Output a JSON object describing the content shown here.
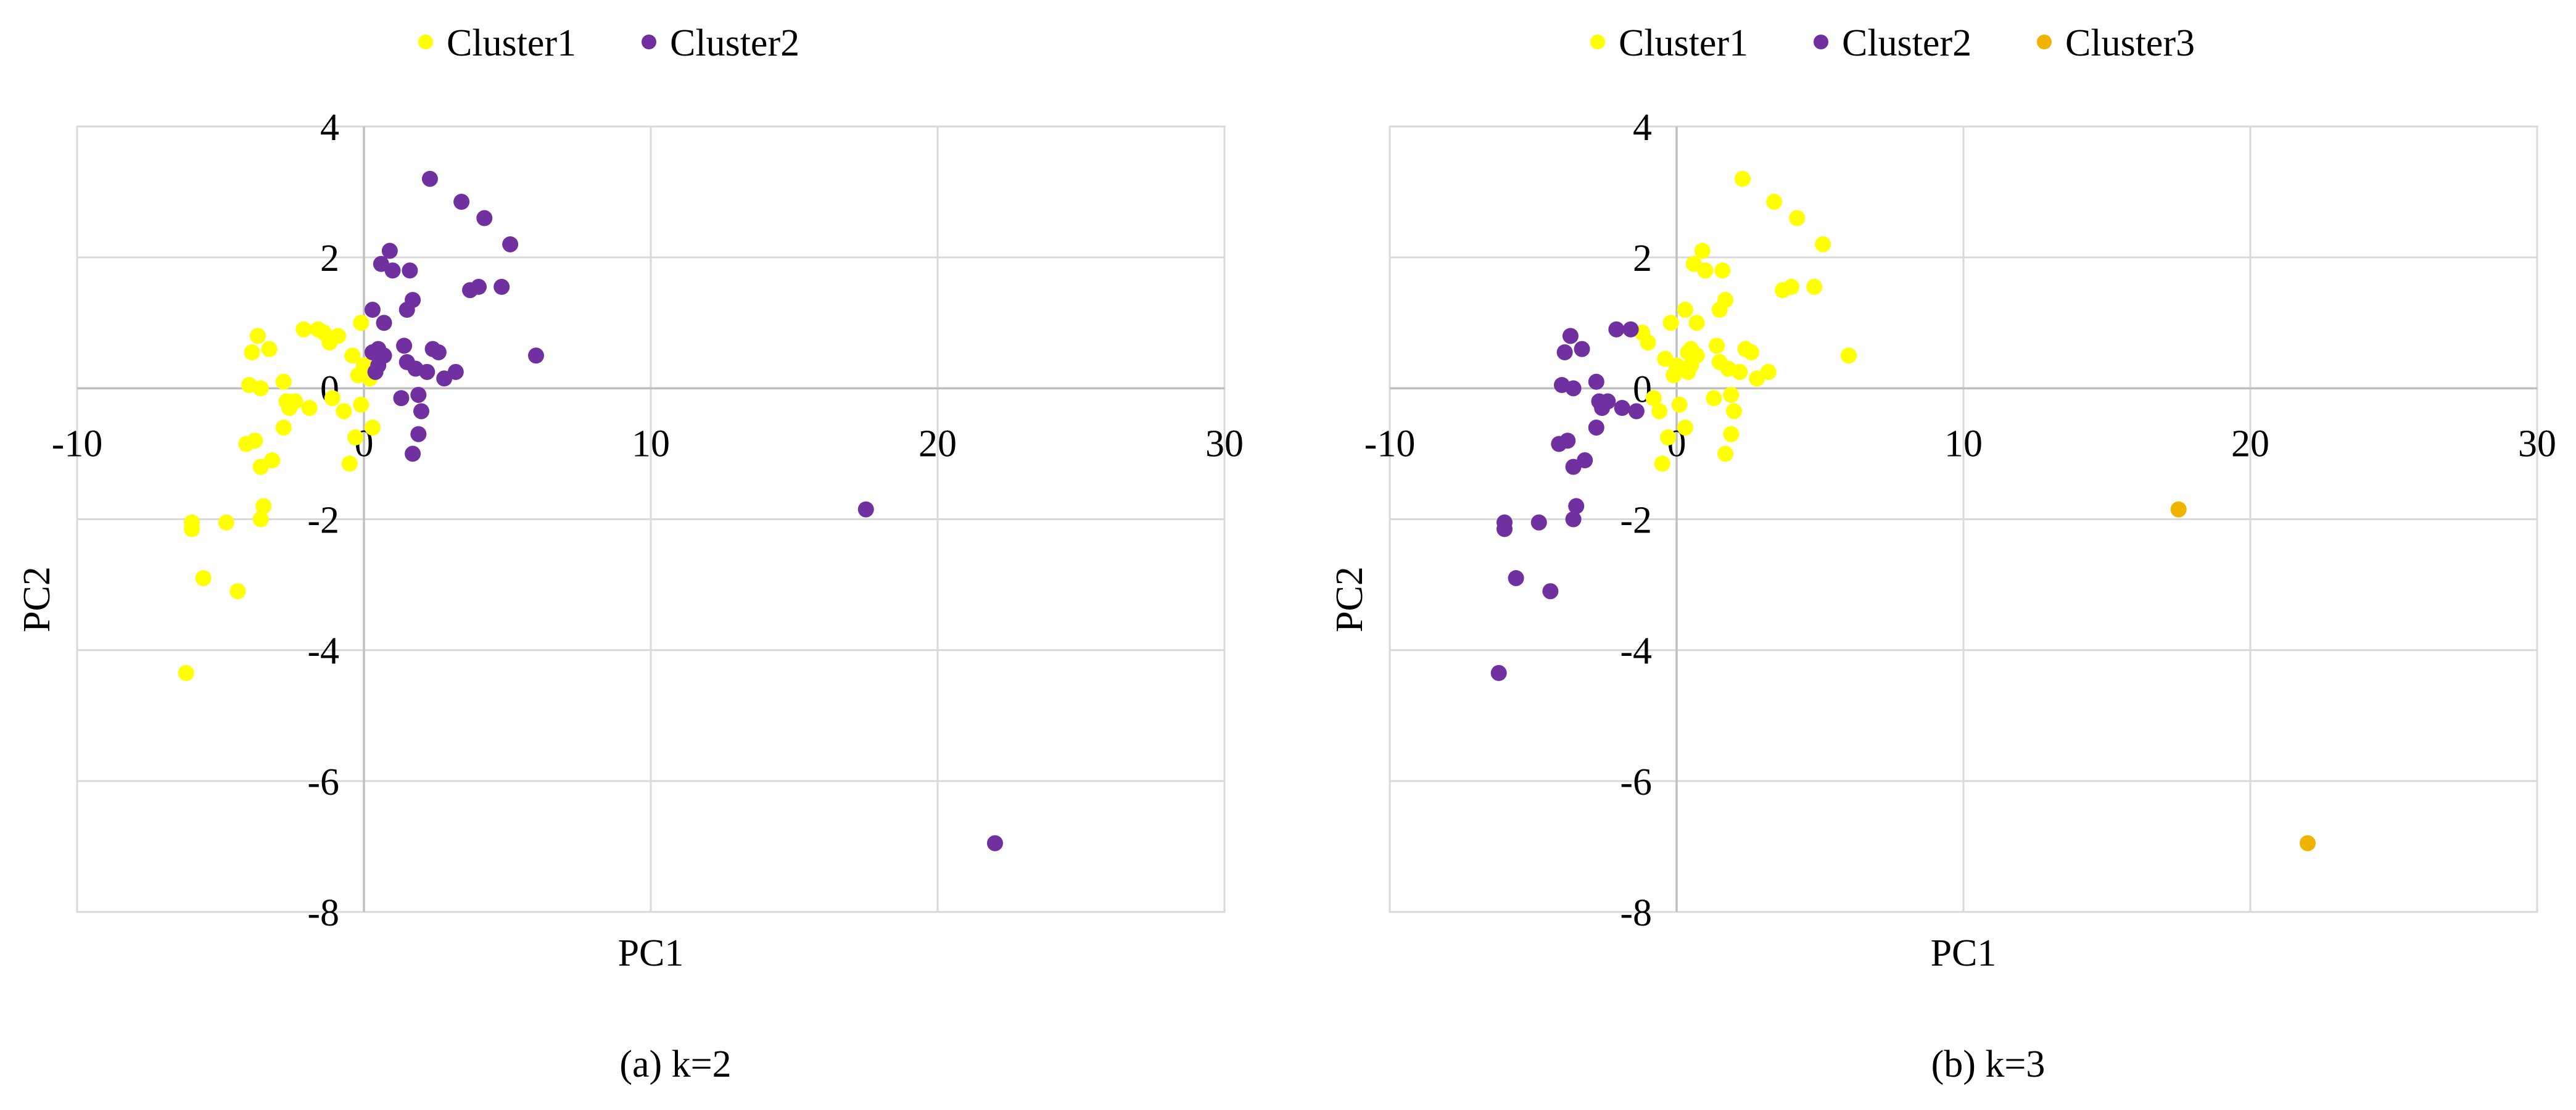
{
  "chart_data": [
    {
      "type": "scatter",
      "caption": "(a)  k=2",
      "xlabel": "PC1",
      "ylabel": "PC2",
      "xlim": [
        -10,
        30
      ],
      "ylim": [
        -8,
        4
      ],
      "xticks": [
        -10,
        0,
        10,
        20,
        30
      ],
      "yticks": [
        -8,
        -6,
        -4,
        -2,
        0,
        2,
        4
      ],
      "grid": true,
      "legend": "top",
      "series": [
        {
          "name": "Cluster1",
          "color": "#FFFF00",
          "points": [
            [
              -6.2,
              -4.35
            ],
            [
              -6.0,
              -2.05
            ],
            [
              -6.0,
              -2.15
            ],
            [
              -5.6,
              -2.9
            ],
            [
              -4.8,
              -2.05
            ],
            [
              -4.4,
              -3.1
            ],
            [
              -4.1,
              -0.85
            ],
            [
              -3.8,
              -0.8
            ],
            [
              -3.6,
              -1.2
            ],
            [
              -3.5,
              -1.8
            ],
            [
              -3.6,
              -2.0
            ],
            [
              -3.7,
              0.8
            ],
            [
              -3.9,
              0.55
            ],
            [
              -4.0,
              0.05
            ],
            [
              -3.6,
              0.0
            ],
            [
              -3.3,
              0.6
            ],
            [
              -3.2,
              -1.1
            ],
            [
              -2.8,
              0.1
            ],
            [
              -2.7,
              -0.2
            ],
            [
              -2.6,
              -0.3
            ],
            [
              -2.8,
              -0.6
            ],
            [
              -2.4,
              -0.2
            ],
            [
              -2.1,
              0.9
            ],
            [
              -1.9,
              -0.3
            ],
            [
              -1.6,
              0.9
            ],
            [
              -1.4,
              0.85
            ],
            [
              -1.2,
              0.7
            ],
            [
              -1.1,
              -0.15
            ],
            [
              -0.9,
              0.8
            ],
            [
              -0.7,
              -0.35
            ],
            [
              -0.5,
              -1.15
            ],
            [
              -0.3,
              -0.75
            ],
            [
              -0.4,
              0.5
            ],
            [
              -0.2,
              0.2
            ],
            [
              -0.1,
              1.0
            ],
            [
              -0.1,
              -0.25
            ],
            [
              0.0,
              0.35
            ],
            [
              0.1,
              0.3
            ],
            [
              0.2,
              0.15
            ],
            [
              0.3,
              -0.6
            ]
          ]
        },
        {
          "name": "Cluster2",
          "color": "#7030A0",
          "points": [
            [
              0.3,
              1.2
            ],
            [
              0.3,
              0.55
            ],
            [
              0.4,
              0.25
            ],
            [
              0.5,
              0.35
            ],
            [
              0.5,
              0.6
            ],
            [
              0.6,
              1.9
            ],
            [
              0.7,
              0.5
            ],
            [
              0.7,
              1.0
            ],
            [
              0.9,
              2.1
            ],
            [
              1.0,
              1.8
            ],
            [
              1.3,
              -0.15
            ],
            [
              1.4,
              0.65
            ],
            [
              1.5,
              1.2
            ],
            [
              1.5,
              0.4
            ],
            [
              1.6,
              1.8
            ],
            [
              1.7,
              1.35
            ],
            [
              1.7,
              -1.0
            ],
            [
              1.8,
              0.3
            ],
            [
              1.9,
              -0.1
            ],
            [
              1.9,
              -0.7
            ],
            [
              2.0,
              -0.35
            ],
            [
              2.2,
              0.25
            ],
            [
              2.4,
              0.6
            ],
            [
              2.3,
              3.2
            ],
            [
              2.6,
              0.55
            ],
            [
              2.8,
              0.15
            ],
            [
              3.2,
              0.25
            ],
            [
              3.4,
              2.85
            ],
            [
              3.7,
              1.5
            ],
            [
              4.0,
              1.55
            ],
            [
              4.2,
              2.6
            ],
            [
              4.8,
              1.55
            ],
            [
              5.1,
              2.2
            ],
            [
              6.0,
              0.5
            ],
            [
              17.5,
              -1.85
            ],
            [
              22.0,
              -6.95
            ]
          ]
        }
      ]
    },
    {
      "type": "scatter",
      "caption": "(b)  k=3",
      "xlabel": "PC1",
      "ylabel": "PC2",
      "xlim": [
        -10,
        30
      ],
      "ylim": [
        -8,
        4
      ],
      "xticks": [
        -10,
        0,
        10,
        20,
        30
      ],
      "yticks": [
        -8,
        -6,
        -4,
        -2,
        0,
        2,
        4
      ],
      "grid": true,
      "legend": "top",
      "series": [
        {
          "name": "Cluster1",
          "color": "#FFFF00",
          "points": [
            [
              -1.2,
              0.85
            ],
            [
              -1.0,
              0.7
            ],
            [
              -0.8,
              -0.15
            ],
            [
              -0.6,
              -0.35
            ],
            [
              -0.5,
              -1.15
            ],
            [
              -0.4,
              0.45
            ],
            [
              -0.3,
              -0.75
            ],
            [
              -0.2,
              1.0
            ],
            [
              -0.1,
              0.2
            ],
            [
              0.0,
              0.35
            ],
            [
              0.1,
              -0.25
            ],
            [
              0.2,
              0.3
            ],
            [
              0.3,
              -0.6
            ],
            [
              0.3,
              1.2
            ],
            [
              0.4,
              0.55
            ],
            [
              0.4,
              0.25
            ],
            [
              0.5,
              0.35
            ],
            [
              0.5,
              0.6
            ],
            [
              0.6,
              1.9
            ],
            [
              0.7,
              0.5
            ],
            [
              0.7,
              1.0
            ],
            [
              0.9,
              2.1
            ],
            [
              1.0,
              1.8
            ],
            [
              1.3,
              -0.15
            ],
            [
              1.4,
              0.65
            ],
            [
              1.5,
              1.2
            ],
            [
              1.5,
              0.4
            ],
            [
              1.6,
              1.8
            ],
            [
              1.7,
              1.35
            ],
            [
              1.7,
              -1.0
            ],
            [
              1.8,
              0.3
            ],
            [
              1.9,
              -0.1
            ],
            [
              1.9,
              -0.7
            ],
            [
              2.0,
              -0.35
            ],
            [
              2.2,
              0.25
            ],
            [
              2.4,
              0.6
            ],
            [
              2.3,
              3.2
            ],
            [
              2.6,
              0.55
            ],
            [
              2.8,
              0.15
            ],
            [
              3.2,
              0.25
            ],
            [
              3.4,
              2.85
            ],
            [
              3.7,
              1.5
            ],
            [
              4.0,
              1.55
            ],
            [
              4.2,
              2.6
            ],
            [
              4.8,
              1.55
            ],
            [
              5.1,
              2.2
            ],
            [
              6.0,
              0.5
            ]
          ]
        },
        {
          "name": "Cluster2",
          "color": "#7030A0",
          "points": [
            [
              -6.2,
              -4.35
            ],
            [
              -6.0,
              -2.05
            ],
            [
              -6.0,
              -2.15
            ],
            [
              -5.6,
              -2.9
            ],
            [
              -4.8,
              -2.05
            ],
            [
              -4.4,
              -3.1
            ],
            [
              -4.1,
              -0.85
            ],
            [
              -3.8,
              -0.8
            ],
            [
              -3.6,
              -1.2
            ],
            [
              -3.5,
              -1.8
            ],
            [
              -3.6,
              -2.0
            ],
            [
              -3.7,
              0.8
            ],
            [
              -3.9,
              0.55
            ],
            [
              -4.0,
              0.05
            ],
            [
              -3.6,
              0.0
            ],
            [
              -3.3,
              0.6
            ],
            [
              -3.2,
              -1.1
            ],
            [
              -2.8,
              0.1
            ],
            [
              -2.7,
              -0.2
            ],
            [
              -2.6,
              -0.3
            ],
            [
              -2.8,
              -0.6
            ],
            [
              -2.4,
              -0.2
            ],
            [
              -2.1,
              0.9
            ],
            [
              -1.9,
              -0.3
            ],
            [
              -1.6,
              0.9
            ],
            [
              -1.4,
              -0.35
            ]
          ]
        },
        {
          "name": "Cluster3",
          "color": "#F0B400",
          "points": [
            [
              17.5,
              -1.85
            ],
            [
              22.0,
              -6.95
            ]
          ]
        }
      ]
    }
  ]
}
